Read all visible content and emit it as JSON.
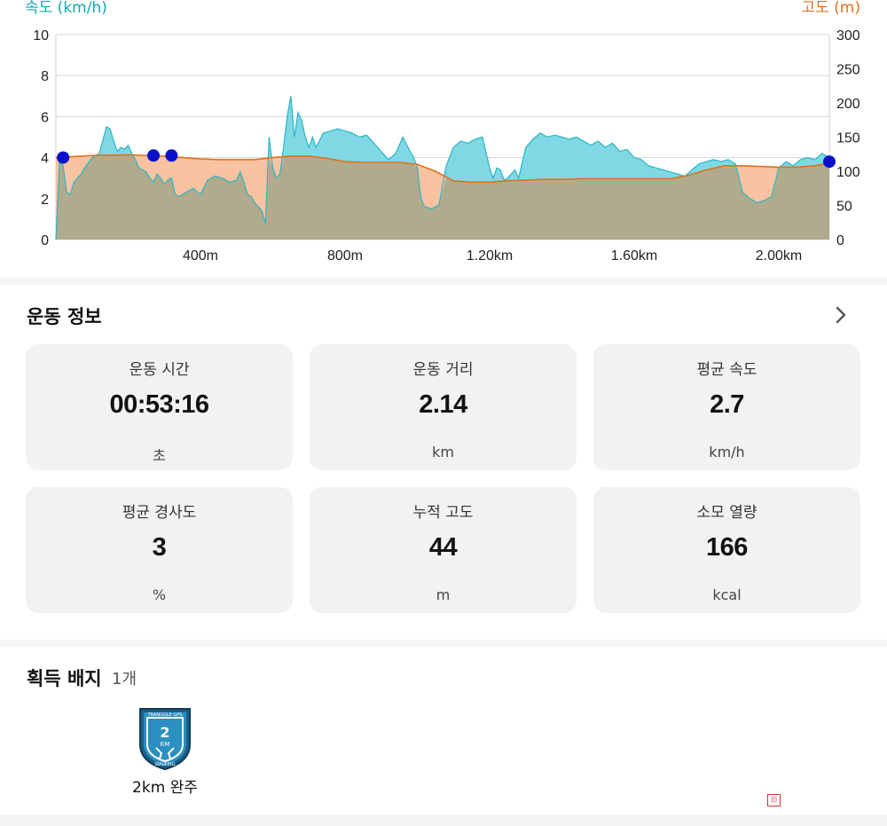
{
  "chart": {
    "left_axis_title": "속도 (km/h)",
    "right_axis_title": "고도 (m)",
    "left_ticks": [
      "10",
      "8",
      "6",
      "4",
      "2",
      "0"
    ],
    "right_ticks": [
      "300",
      "250",
      "200",
      "150",
      "100",
      "50",
      "0"
    ],
    "x_ticks": [
      "400m",
      "800m",
      "1.20km",
      "1.60km",
      "2.00km"
    ],
    "colors": {
      "speed_fill": "#7fd8e3",
      "speed_line": "#29b6c6",
      "alt_fill": "#f9c3a1",
      "alt_line": "#e0701c",
      "overlap": "#b0ab8c",
      "marker": "#0a10c8"
    }
  },
  "chart_data": {
    "type": "area",
    "x_unit": "km",
    "xlim": [
      0,
      2.14
    ],
    "series": [
      {
        "name": "속도 (km/h)",
        "axis": "left",
        "ylim": [
          0,
          10
        ],
        "x": [
          0,
          0.01,
          0.02,
          0.03,
          0.04,
          0.05,
          0.06,
          0.07,
          0.08,
          0.1,
          0.12,
          0.14,
          0.15,
          0.16,
          0.17,
          0.18,
          0.19,
          0.2,
          0.21,
          0.22,
          0.23,
          0.24,
          0.25,
          0.26,
          0.27,
          0.28,
          0.29,
          0.3,
          0.31,
          0.32,
          0.33,
          0.34,
          0.36,
          0.38,
          0.4,
          0.42,
          0.44,
          0.46,
          0.48,
          0.5,
          0.51,
          0.52,
          0.53,
          0.54,
          0.55,
          0.56,
          0.57,
          0.58,
          0.59,
          0.6,
          0.61,
          0.62,
          0.63,
          0.64,
          0.65,
          0.66,
          0.67,
          0.68,
          0.69,
          0.7,
          0.71,
          0.72,
          0.74,
          0.76,
          0.78,
          0.8,
          0.82,
          0.84,
          0.86,
          0.88,
          0.9,
          0.92,
          0.94,
          0.96,
          0.98,
          0.99,
          1.0,
          1.01,
          1.02,
          1.04,
          1.06,
          1.08,
          1.1,
          1.12,
          1.14,
          1.16,
          1.18,
          1.2,
          1.21,
          1.22,
          1.23,
          1.24,
          1.25,
          1.26,
          1.27,
          1.28,
          1.3,
          1.32,
          1.34,
          1.36,
          1.38,
          1.4,
          1.42,
          1.44,
          1.46,
          1.48,
          1.5,
          1.52,
          1.54,
          1.56,
          1.58,
          1.6,
          1.62,
          1.64,
          1.66,
          1.68,
          1.7,
          1.72,
          1.74,
          1.76,
          1.78,
          1.8,
          1.82,
          1.84,
          1.86,
          1.88,
          1.9,
          1.92,
          1.94,
          1.96,
          1.98,
          2.0,
          2.02,
          2.04,
          2.06,
          2.08,
          2.1,
          2.12,
          2.14
        ],
        "y": [
          0,
          3.8,
          3.6,
          2.3,
          2.2,
          2.8,
          3.0,
          3.2,
          3.5,
          4.0,
          4.2,
          5.5,
          5.4,
          4.8,
          4.3,
          4.5,
          4.4,
          4.6,
          4.2,
          3.9,
          3.5,
          3.4,
          3.3,
          3.0,
          2.8,
          3.2,
          3.0,
          2.7,
          2.9,
          3.0,
          2.2,
          2.1,
          2.3,
          2.5,
          2.2,
          2.9,
          3.1,
          3.0,
          2.8,
          2.9,
          3.3,
          2.8,
          2.2,
          2.1,
          1.8,
          1.6,
          1.4,
          0.8,
          5.0,
          3.5,
          3.0,
          3.2,
          4.5,
          6.0,
          7.0,
          5.0,
          6.2,
          5.8,
          5.0,
          4.5,
          5.0,
          4.5,
          5.2,
          5.3,
          5.4,
          5.3,
          5.2,
          5.0,
          5.1,
          4.7,
          4.3,
          3.9,
          4.2,
          5.0,
          4.3,
          4.0,
          3.5,
          2.0,
          1.6,
          1.5,
          1.7,
          3.6,
          4.5,
          4.8,
          4.7,
          4.9,
          5.0,
          3.5,
          3.0,
          3.5,
          3.4,
          2.9,
          3.0,
          3.2,
          3.4,
          3.0,
          4.5,
          4.9,
          5.2,
          5.0,
          5.1,
          5.0,
          4.9,
          5.0,
          4.8,
          4.6,
          4.8,
          4.5,
          4.7,
          4.3,
          4.4,
          4.0,
          3.9,
          3.6,
          3.5,
          3.4,
          3.3,
          3.2,
          3.1,
          3.4,
          3.7,
          3.8,
          3.9,
          3.8,
          3.9,
          3.7,
          2.3,
          2.0,
          1.8,
          1.9,
          2.1,
          3.5,
          3.8,
          3.6,
          3.9,
          4.0,
          3.9,
          4.2,
          4.0
        ]
      },
      {
        "name": "고도 (m)",
        "axis": "right",
        "ylim": [
          0,
          300
        ],
        "x": [
          0,
          0.1,
          0.2,
          0.3,
          0.4,
          0.45,
          0.5,
          0.55,
          0.6,
          0.65,
          0.7,
          0.75,
          0.8,
          0.85,
          0.9,
          0.95,
          1.0,
          1.05,
          1.1,
          1.15,
          1.2,
          1.25,
          1.3,
          1.35,
          1.4,
          1.45,
          1.5,
          1.55,
          1.6,
          1.65,
          1.7,
          1.75,
          1.8,
          1.85,
          1.9,
          1.95,
          2.0,
          2.05,
          2.1,
          2.14
        ],
        "y": [
          120,
          123,
          124,
          122,
          118,
          117,
          117,
          117,
          120,
          122,
          122,
          119,
          114,
          113,
          113,
          113,
          110,
          100,
          86,
          84,
          84,
          86,
          87,
          88,
          88,
          89,
          89,
          89,
          89,
          89,
          89,
          94,
          102,
          108,
          108,
          107,
          106,
          106,
          108,
          112
        ]
      }
    ],
    "markers": [
      {
        "x": 0.02,
        "y": 4
      },
      {
        "x": 0.27,
        "y": 4.1
      },
      {
        "x": 0.32,
        "y": 4.1
      },
      {
        "x": 2.14,
        "y": 3.8
      }
    ]
  },
  "info": {
    "title": "운동 정보",
    "tiles": [
      {
        "label": "운동 시간",
        "value": "00:53:16",
        "unit": "초"
      },
      {
        "label": "운동 거리",
        "value": "2.14",
        "unit": "km"
      },
      {
        "label": "평균 속도",
        "value": "2.7",
        "unit": "km/h"
      },
      {
        "label": "평균 경사도",
        "value": "3",
        "unit": "%"
      },
      {
        "label": "누적 고도",
        "value": "44",
        "unit": "m"
      },
      {
        "label": "소모 열량",
        "value": "166",
        "unit": "kcal"
      }
    ]
  },
  "badges": {
    "title": "획득 배지",
    "count": "1개",
    "items": [
      {
        "label": "2km 완주",
        "badge_top_text": "TRANGGLE GPS",
        "badge_number": "2",
        "badge_unit": "KM",
        "badge_bottom_text": "WALKING"
      }
    ]
  }
}
